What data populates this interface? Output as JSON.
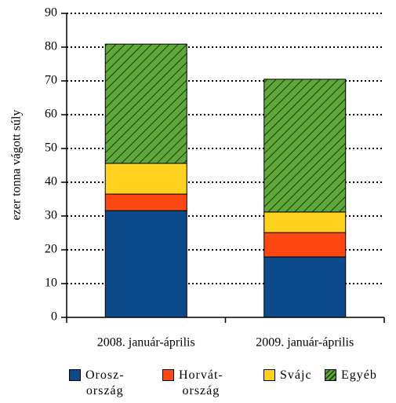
{
  "chart_data": {
    "type": "stacked_bar",
    "y_label": "ezer tonna vágott súly",
    "categories": [
      "2008. január-április",
      "2009. január-április"
    ],
    "series": [
      {
        "name": "Orosz-\nország",
        "color": "#0b4a8b",
        "values": [
          31.6,
          17.9
        ]
      },
      {
        "name": "Horvát-\nország",
        "color": "#ff4712",
        "values": [
          4.9,
          7.2
        ]
      },
      {
        "name": "Svájc",
        "color": "#ffd21f",
        "values": [
          9.1,
          6.1
        ]
      },
      {
        "name": "Egyéb",
        "color": "#5ea83a",
        "hatch": true,
        "values": [
          35.3,
          39.3
        ]
      }
    ],
    "ylim": [
      0,
      90
    ],
    "yticks": [
      0,
      10,
      20,
      30,
      40,
      50,
      60,
      70,
      80,
      90
    ],
    "grid": true,
    "legend": "bottom"
  }
}
